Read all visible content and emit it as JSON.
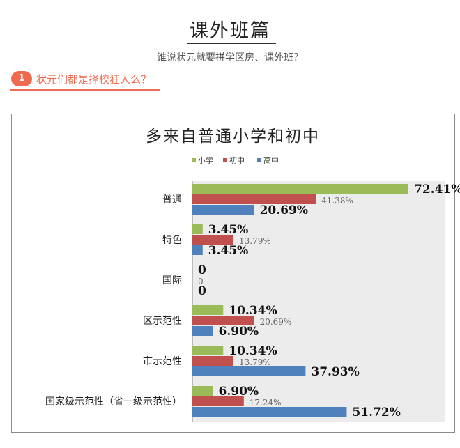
{
  "page": {
    "heading": "课外班篇",
    "subheading": "谁说状元就要拼学区房、课外班？",
    "question_number": "1",
    "question_text": "状元们都是择校狂人么？"
  },
  "chart_data": {
    "type": "bar",
    "orientation": "horizontal",
    "title": "多来自普通小学和初中",
    "categories": [
      "普通",
      "特色",
      "国际",
      "区示范性",
      "市示范性",
      "国家级示范性（省一级示范性）"
    ],
    "series": [
      {
        "name": "小学",
        "color": "#9bbb59",
        "values": [
          72.41,
          3.45,
          0,
          10.34,
          10.34,
          6.9
        ],
        "labels": [
          "72.41%",
          "3.45%",
          "0",
          "10.34%",
          "10.34%",
          "6.90%"
        ]
      },
      {
        "name": "初中",
        "color": "#c0504d",
        "values": [
          41.38,
          13.79,
          0,
          20.69,
          13.79,
          17.24
        ],
        "labels": [
          "41.38%",
          "13.79%",
          "0",
          "20.69%",
          "13.79%",
          "17.24%"
        ]
      },
      {
        "name": "高中",
        "color": "#4f81bd",
        "values": [
          20.69,
          3.45,
          0,
          6.9,
          37.93,
          51.72
        ],
        "labels": [
          "20.69%",
          "3.45%",
          "0",
          "6.90%",
          "37.93%",
          "51.72%"
        ]
      }
    ],
    "xlim": [
      0,
      80
    ],
    "legend": "top",
    "grid": false
  }
}
